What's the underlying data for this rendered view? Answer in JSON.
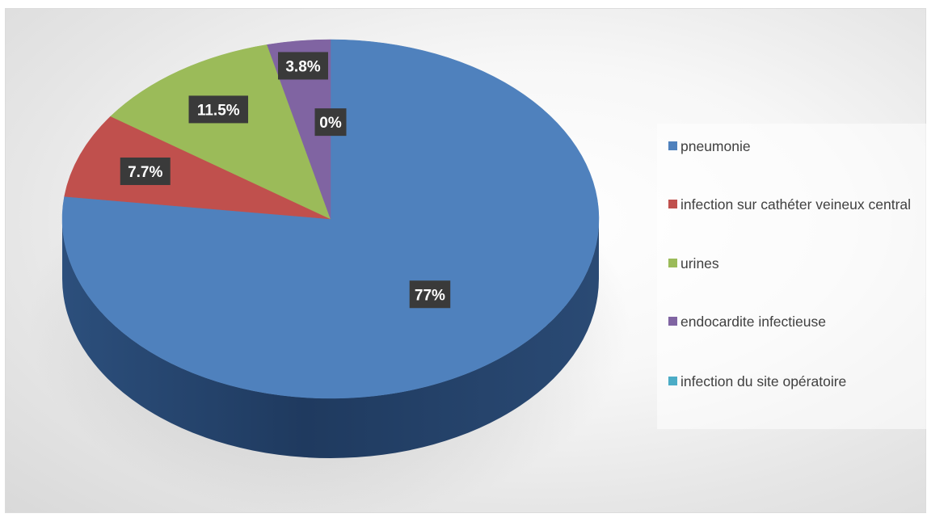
{
  "chart_data": {
    "type": "pie",
    "categories": [
      "pneumonie",
      "infection sur cathéter veineux central",
      "urines",
      "endocardite infectieuse",
      "infection du site opératoire"
    ],
    "values": [
      77,
      7.7,
      11.5,
      3.8,
      0
    ],
    "data_labels": [
      "77%",
      "7.7%",
      "11.5%",
      "3.8%",
      "0%"
    ],
    "colors": [
      "#4f81bd",
      "#c0504d",
      "#9bbb59",
      "#8064a2",
      "#4bacc6"
    ],
    "legend_position": "right",
    "style": "3d-pie"
  }
}
